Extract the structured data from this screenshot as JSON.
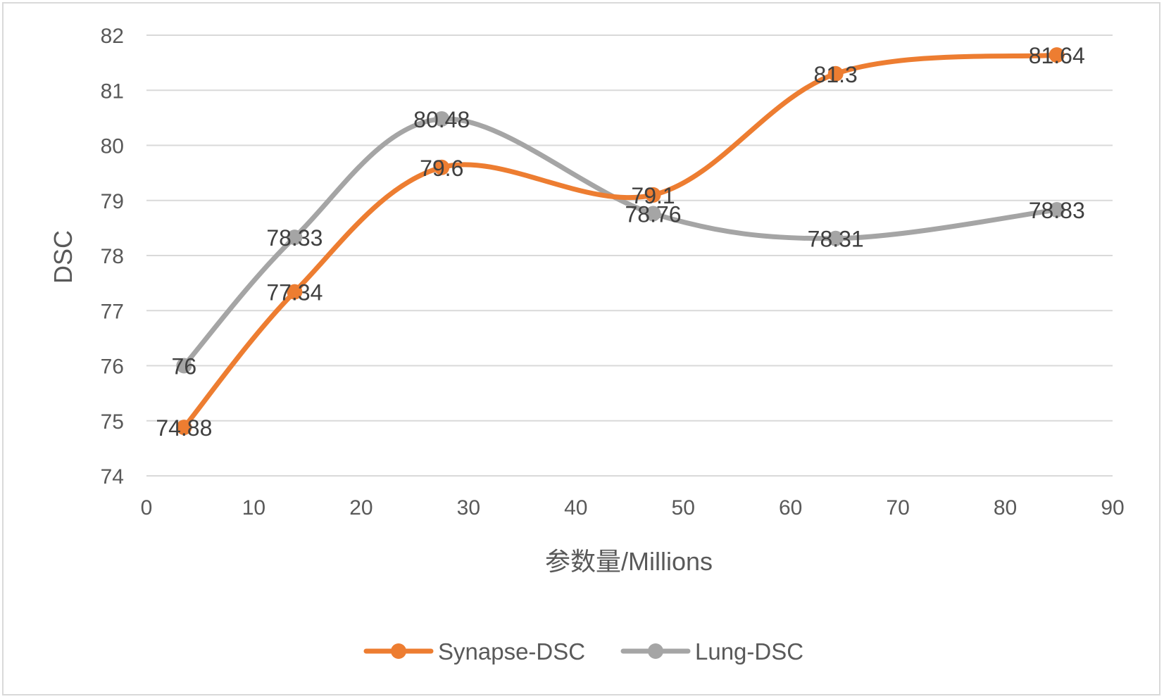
{
  "chart_data": {
    "type": "line",
    "xlabel": "参数量/Millions",
    "ylabel": "DSC",
    "xlim": [
      0,
      90
    ],
    "ylim": [
      74,
      82
    ],
    "x_ticks": [
      0,
      10,
      20,
      30,
      40,
      50,
      60,
      70,
      80,
      90
    ],
    "y_ticks": [
      74,
      75,
      76,
      77,
      78,
      79,
      80,
      81,
      82
    ],
    "grid": "horizontal",
    "smooth": true,
    "legend_position": "bottom",
    "series": [
      {
        "name": "Synapse-DSC",
        "color": "#ed7d31",
        "points": [
          {
            "x": 3.5,
            "y": 74.88,
            "label": "74.88"
          },
          {
            "x": 13.8,
            "y": 77.34,
            "label": "77.34"
          },
          {
            "x": 27.5,
            "y": 79.6,
            "label": "79.6"
          },
          {
            "x": 47.2,
            "y": 79.1,
            "label": "79.1"
          },
          {
            "x": 64.2,
            "y": 81.3,
            "label": "81.3"
          },
          {
            "x": 84.8,
            "y": 81.64,
            "label": "81.64"
          }
        ]
      },
      {
        "name": "Lung-DSC",
        "color": "#a5a5a5",
        "points": [
          {
            "x": 3.5,
            "y": 76,
            "label": "76"
          },
          {
            "x": 13.8,
            "y": 78.33,
            "label": "78.33"
          },
          {
            "x": 27.5,
            "y": 80.48,
            "label": "80.48"
          },
          {
            "x": 47.2,
            "y": 78.76,
            "label": "78.76"
          },
          {
            "x": 64.2,
            "y": 78.31,
            "label": "78.31"
          },
          {
            "x": 84.8,
            "y": 78.83,
            "label": "78.83"
          }
        ]
      }
    ]
  },
  "colors": {
    "gridline": "#d9d9d9",
    "tick_text": "#595959",
    "label_text": "#404040"
  }
}
